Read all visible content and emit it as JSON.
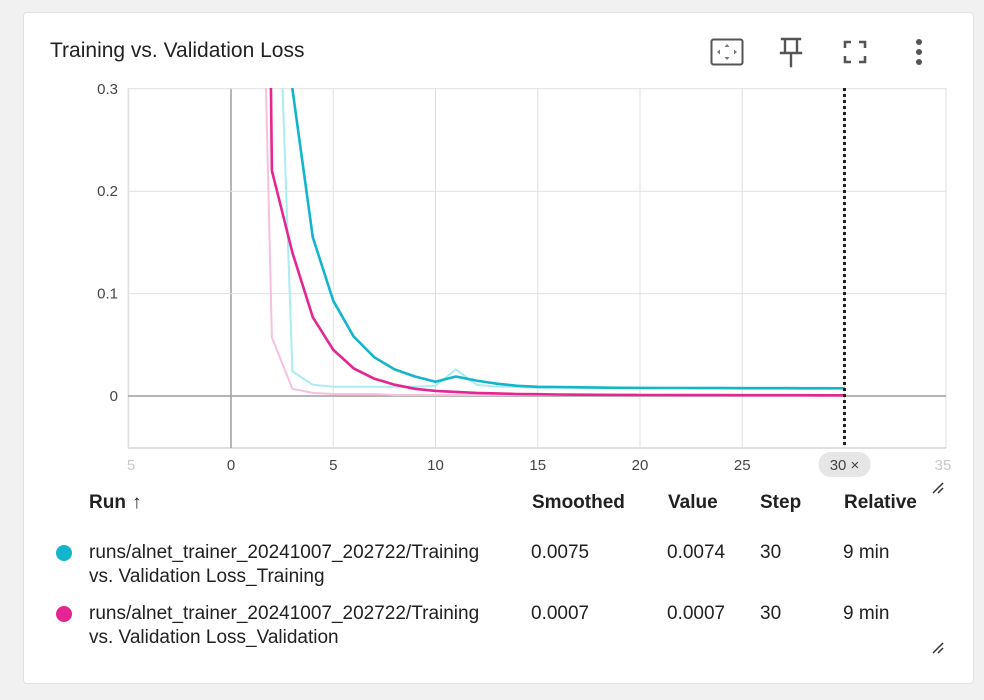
{
  "card": {
    "title": "Training vs. Validation Loss"
  },
  "toolbar": {
    "icons": [
      "fit-domain-icon",
      "pin-icon",
      "fullscreen-icon",
      "more-vert-icon"
    ]
  },
  "chart_data": {
    "type": "line",
    "title": "Training vs. Validation Loss",
    "xlabel": "",
    "ylabel": "",
    "x_ticks": [
      "5",
      "0",
      "5",
      "10",
      "15",
      "20",
      "25",
      "30",
      "35"
    ],
    "x_ticks_values": [
      -5,
      0,
      5,
      10,
      15,
      20,
      25,
      30,
      35
    ],
    "y_ticks": [
      "0.3",
      "0.2",
      "0.1",
      "0"
    ],
    "y_ticks_values": [
      0.3,
      0.2,
      0.1,
      0
    ],
    "xlim": [
      -5,
      35
    ],
    "ylim": [
      -0.05,
      0.3
    ],
    "cursor_step": 30,
    "cursor_label": "30 ×",
    "grid": true,
    "series": [
      {
        "name": "runs/alnet_trainer_20241007_202722/Training vs. Validation Loss_Training",
        "color": "#12b5cb",
        "raw_color": "#a9ecf2",
        "raw": [
          [
            1,
            0.9
          ],
          [
            2,
            0.6
          ],
          [
            3,
            0.024
          ],
          [
            4,
            0.011
          ],
          [
            5,
            0.009
          ],
          [
            6,
            0.009
          ],
          [
            7,
            0.009
          ],
          [
            8,
            0.009
          ],
          [
            9,
            0.009
          ],
          [
            10,
            0.01
          ],
          [
            11,
            0.026
          ],
          [
            12,
            0.011
          ],
          [
            13,
            0.009
          ],
          [
            14,
            0.009
          ],
          [
            15,
            0.008
          ],
          [
            16,
            0.008
          ],
          [
            17,
            0.008
          ],
          [
            18,
            0.008
          ],
          [
            19,
            0.008
          ],
          [
            20,
            0.008
          ],
          [
            21,
            0.008
          ],
          [
            22,
            0.008
          ],
          [
            23,
            0.008
          ],
          [
            24,
            0.008
          ],
          [
            25,
            0.008
          ],
          [
            26,
            0.008
          ],
          [
            27,
            0.008
          ],
          [
            28,
            0.008
          ],
          [
            29,
            0.008
          ],
          [
            30,
            0.0074
          ]
        ],
        "smoothed": [
          [
            2,
            0.9
          ],
          [
            3,
            0.3
          ],
          [
            4,
            0.155
          ],
          [
            5,
            0.093
          ],
          [
            6,
            0.058
          ],
          [
            7,
            0.038
          ],
          [
            8,
            0.026
          ],
          [
            9,
            0.019
          ],
          [
            10,
            0.014
          ],
          [
            11,
            0.019
          ],
          [
            12,
            0.015
          ],
          [
            13,
            0.012
          ],
          [
            14,
            0.01
          ],
          [
            15,
            0.009
          ],
          [
            16,
            0.0088
          ],
          [
            17,
            0.0085
          ],
          [
            18,
            0.0082
          ],
          [
            19,
            0.008
          ],
          [
            20,
            0.0079
          ],
          [
            21,
            0.0078
          ],
          [
            22,
            0.0078
          ],
          [
            23,
            0.0077
          ],
          [
            24,
            0.0077
          ],
          [
            25,
            0.0076
          ],
          [
            26,
            0.0076
          ],
          [
            27,
            0.0076
          ],
          [
            28,
            0.0075
          ],
          [
            29,
            0.0075
          ],
          [
            30,
            0.0075
          ]
        ]
      },
      {
        "name": "runs/alnet_trainer_20241007_202722/Training vs. Validation Loss_Validation",
        "color": "#e52592",
        "raw_color": "#f7c0dd",
        "raw": [
          [
            1,
            0.9
          ],
          [
            2,
            0.057
          ],
          [
            3,
            0.007
          ],
          [
            4,
            0.003
          ],
          [
            5,
            0.002
          ],
          [
            6,
            0.002
          ],
          [
            7,
            0.002
          ],
          [
            8,
            0.001
          ],
          [
            9,
            0.001
          ],
          [
            10,
            0.001
          ],
          [
            11,
            0.001
          ],
          [
            12,
            0.001
          ],
          [
            13,
            0.001
          ],
          [
            14,
            0.001
          ],
          [
            15,
            0.001
          ],
          [
            16,
            0.001
          ],
          [
            17,
            0.001
          ],
          [
            18,
            0.001
          ],
          [
            19,
            0.001
          ],
          [
            20,
            0.001
          ],
          [
            21,
            0.001
          ],
          [
            22,
            0.001
          ],
          [
            23,
            0.001
          ],
          [
            24,
            0.001
          ],
          [
            25,
            0.001
          ],
          [
            26,
            0.0008
          ],
          [
            27,
            0.0008
          ],
          [
            28,
            0.0008
          ],
          [
            29,
            0.0007
          ],
          [
            30,
            0.0007
          ]
        ],
        "smoothed": [
          [
            1.6,
            0.9
          ],
          [
            2,
            0.22
          ],
          [
            3,
            0.14
          ],
          [
            4,
            0.077
          ],
          [
            5,
            0.045
          ],
          [
            6,
            0.027
          ],
          [
            7,
            0.017
          ],
          [
            8,
            0.011
          ],
          [
            9,
            0.007
          ],
          [
            10,
            0.005
          ],
          [
            11,
            0.004
          ],
          [
            12,
            0.003
          ],
          [
            13,
            0.0025
          ],
          [
            14,
            0.002
          ],
          [
            15,
            0.0018
          ],
          [
            16,
            0.0015
          ],
          [
            17,
            0.0013
          ],
          [
            18,
            0.0012
          ],
          [
            19,
            0.0011
          ],
          [
            20,
            0.001
          ],
          [
            21,
            0.001
          ],
          [
            22,
            0.0009
          ],
          [
            23,
            0.0009
          ],
          [
            24,
            0.0009
          ],
          [
            25,
            0.0008
          ],
          [
            26,
            0.0008
          ],
          [
            27,
            0.0008
          ],
          [
            28,
            0.0008
          ],
          [
            29,
            0.0007
          ],
          [
            30,
            0.0007
          ]
        ]
      }
    ]
  },
  "table": {
    "headers": {
      "run": "Run",
      "sort": "↑",
      "smoothed": "Smoothed",
      "value": "Value",
      "step": "Step",
      "relative": "Relative"
    },
    "rows": [
      {
        "color": "#12b5cb",
        "run_line1": "runs/alnet_trainer_20241007_202722/Training",
        "run_line2": "vs. Validation Loss_Training",
        "smoothed": "0.0075",
        "value": "0.0074",
        "step": "30",
        "relative": "9 min"
      },
      {
        "color": "#e52592",
        "run_line1": "runs/alnet_trainer_20241007_202722/Training",
        "run_line2": "vs. Validation Loss_Validation",
        "smoothed": "0.0007",
        "value": "0.0007",
        "step": "30",
        "relative": "9 min"
      }
    ]
  }
}
